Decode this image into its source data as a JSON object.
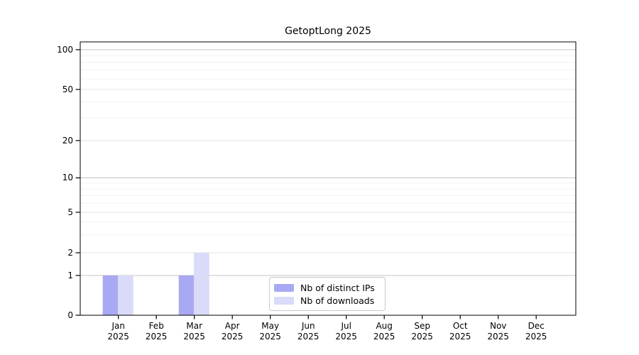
{
  "chart_data": {
    "type": "bar",
    "title": "GetoptLong 2025",
    "categories": [
      "Jan",
      "Feb",
      "Mar",
      "Apr",
      "May",
      "Jun",
      "Jul",
      "Aug",
      "Sep",
      "Oct",
      "Nov",
      "Dec"
    ],
    "x_year_label": "2025",
    "series": [
      {
        "name": "Nb of distinct IPs",
        "color": "#a9a9f3",
        "values": [
          1,
          0,
          1,
          0,
          0,
          0,
          0,
          0,
          0,
          0,
          0,
          0
        ]
      },
      {
        "name": "Nb of downloads",
        "color": "#dadaf9",
        "values": [
          1,
          0,
          2,
          0,
          0,
          0,
          0,
          0,
          0,
          0,
          0,
          0
        ]
      }
    ],
    "y_ticks": [
      0,
      1,
      2,
      5,
      10,
      20,
      50,
      100
    ],
    "y_minor_gridlines": [
      3,
      4,
      6,
      7,
      8,
      9,
      30,
      40,
      60,
      70,
      80,
      90
    ],
    "yscale": "log-like",
    "ylim": [
      0,
      110
    ],
    "grid": true,
    "legend_position": "lower center",
    "colors": {
      "axis": "#000000",
      "gridline_decade": "#c4c4c4",
      "gridline_labeled": "#e4e4e4",
      "gridline_minor": "#f2f2f2",
      "background": "#ffffff"
    }
  }
}
